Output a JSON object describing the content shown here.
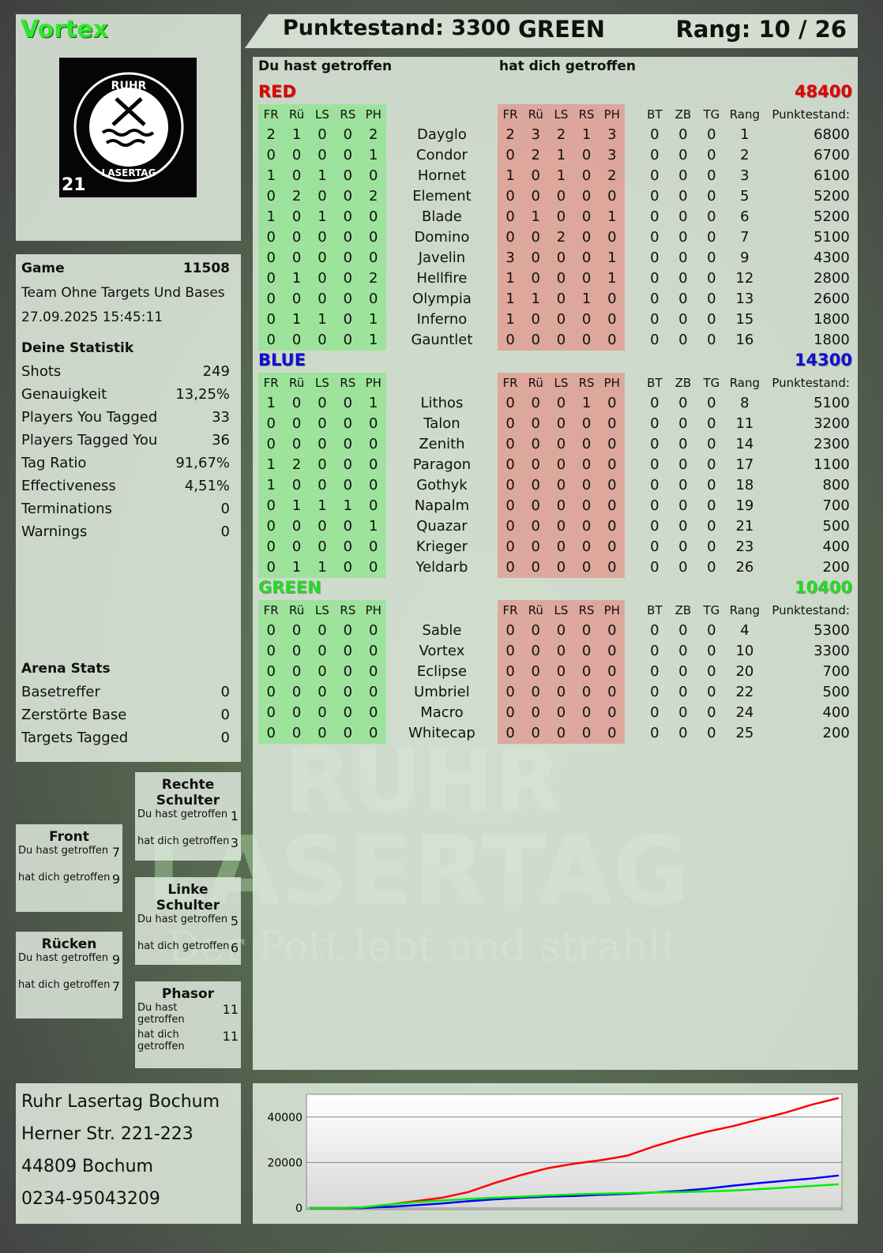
{
  "watermark": {
    "line1": "RUHR",
    "line2": "LASERTAG",
    "line3": "Der Pott lebt und strahlt"
  },
  "player": {
    "name": "Vortex",
    "logo_text": "RUHR LASERTAG",
    "logo_number": "21"
  },
  "header": {
    "score_label": "Punktestand: 3300",
    "team": "GREEN",
    "rank_label": "Rang: 10 / 26"
  },
  "game": {
    "label": "Game",
    "id": "11508",
    "mode": "Team Ohne Targets Und Bases",
    "datetime": "27.09.2025 15:45:11"
  },
  "stats": {
    "title": "Deine Statistik",
    "items": [
      {
        "label": "Shots",
        "value": "249"
      },
      {
        "label": "Genauigkeit",
        "value": "13,25%"
      },
      {
        "label": "Players You Tagged",
        "value": "33"
      },
      {
        "label": "Players Tagged You",
        "value": "36"
      },
      {
        "label": "Tag Ratio",
        "value": "91,67%"
      },
      {
        "label": "Effectiveness",
        "value": "4,51%"
      },
      {
        "label": "Terminations",
        "value": "0"
      },
      {
        "label": "Warnings",
        "value": "0"
      }
    ]
  },
  "arena": {
    "title": "Arena Stats",
    "items": [
      {
        "label": "Basetreffer",
        "value": "0"
      },
      {
        "label": "Zerstörte Base",
        "value": "0"
      },
      {
        "label": "Targets Tagged",
        "value": "0"
      }
    ]
  },
  "zones": [
    {
      "title": "Rechte Schulter",
      "hit_label": "Du hast getroffen",
      "hit": "1",
      "got_label": "hat dich getroffen",
      "got": "3"
    },
    {
      "title": "Front",
      "hit_label": "Du hast getroffen",
      "hit": "7",
      "got_label": "hat dich getroffen",
      "got": "9"
    },
    {
      "title": "Linke Schulter",
      "hit_label": "Du hast getroffen",
      "hit": "5",
      "got_label": "hat dich getroffen",
      "got": "6"
    },
    {
      "title": "Rücken",
      "hit_label": "Du hast getroffen",
      "hit": "9",
      "got_label": "hat dich getroffen",
      "got": "7"
    },
    {
      "title": "Phasor",
      "hit_label": "Du hast getroffen",
      "hit": "11",
      "got_label": "hat dich getroffen",
      "got": "11"
    }
  ],
  "address": {
    "name": "Ruhr Lasertag Bochum",
    "street": "Herner Str. 221-223",
    "city": "44809 Bochum",
    "phone": "0234-95043209"
  },
  "table": {
    "hit_title": "Du hast getroffen",
    "got_title": "hat dich getroffen",
    "columns": [
      "FR",
      "Rü",
      "LS",
      "RS",
      "PH",
      "FR",
      "Rü",
      "LS",
      "RS",
      "PH",
      "BT",
      "ZB",
      "TG",
      "Rang",
      "Punktestand:"
    ],
    "teams": [
      {
        "name": "RED",
        "total": "48400",
        "color": "#e00000",
        "players": [
          [
            "Dayglo",
            [
              2,
              1,
              0,
              0,
              2
            ],
            [
              2,
              3,
              2,
              1,
              3
            ],
            [
              0,
              0,
              0
            ],
            1,
            6800
          ],
          [
            "Condor",
            [
              0,
              0,
              0,
              0,
              1
            ],
            [
              0,
              2,
              1,
              0,
              3
            ],
            [
              0,
              0,
              0
            ],
            2,
            6700
          ],
          [
            "Hornet",
            [
              1,
              0,
              1,
              0,
              0
            ],
            [
              1,
              0,
              1,
              0,
              2
            ],
            [
              0,
              0,
              0
            ],
            3,
            6100
          ],
          [
            "Element",
            [
              0,
              2,
              0,
              0,
              2
            ],
            [
              0,
              0,
              0,
              0,
              0
            ],
            [
              0,
              0,
              0
            ],
            5,
            5200
          ],
          [
            "Blade",
            [
              1,
              0,
              1,
              0,
              0
            ],
            [
              0,
              1,
              0,
              0,
              1
            ],
            [
              0,
              0,
              0
            ],
            6,
            5200
          ],
          [
            "Domino",
            [
              0,
              0,
              0,
              0,
              0
            ],
            [
              0,
              0,
              2,
              0,
              0
            ],
            [
              0,
              0,
              0
            ],
            7,
            5100
          ],
          [
            "Javelin",
            [
              0,
              0,
              0,
              0,
              0
            ],
            [
              3,
              0,
              0,
              0,
              1
            ],
            [
              0,
              0,
              0
            ],
            9,
            4300
          ],
          [
            "Hellfire",
            [
              0,
              1,
              0,
              0,
              2
            ],
            [
              1,
              0,
              0,
              0,
              1
            ],
            [
              0,
              0,
              0
            ],
            12,
            2800
          ],
          [
            "Olympia",
            [
              0,
              0,
              0,
              0,
              0
            ],
            [
              1,
              1,
              0,
              1,
              0
            ],
            [
              0,
              0,
              0
            ],
            13,
            2600
          ],
          [
            "Inferno",
            [
              0,
              1,
              1,
              0,
              1
            ],
            [
              1,
              0,
              0,
              0,
              0
            ],
            [
              0,
              0,
              0
            ],
            15,
            1800
          ],
          [
            "Gauntlet",
            [
              0,
              0,
              0,
              0,
              1
            ],
            [
              0,
              0,
              0,
              0,
              0
            ],
            [
              0,
              0,
              0
            ],
            16,
            1800
          ]
        ]
      },
      {
        "name": "BLUE",
        "total": "14300",
        "color": "#1010d0",
        "players": [
          [
            "Lithos",
            [
              1,
              0,
              0,
              0,
              1
            ],
            [
              0,
              0,
              0,
              1,
              0
            ],
            [
              0,
              0,
              0
            ],
            8,
            5100
          ],
          [
            "Talon",
            [
              0,
              0,
              0,
              0,
              0
            ],
            [
              0,
              0,
              0,
              0,
              0
            ],
            [
              0,
              0,
              0
            ],
            11,
            3200
          ],
          [
            "Zenith",
            [
              0,
              0,
              0,
              0,
              0
            ],
            [
              0,
              0,
              0,
              0,
              0
            ],
            [
              0,
              0,
              0
            ],
            14,
            2300
          ],
          [
            "Paragon",
            [
              1,
              2,
              0,
              0,
              0
            ],
            [
              0,
              0,
              0,
              0,
              0
            ],
            [
              0,
              0,
              0
            ],
            17,
            1100
          ],
          [
            "Gothyk",
            [
              1,
              0,
              0,
              0,
              0
            ],
            [
              0,
              0,
              0,
              0,
              0
            ],
            [
              0,
              0,
              0
            ],
            18,
            800
          ],
          [
            "Napalm",
            [
              0,
              1,
              1,
              1,
              0
            ],
            [
              0,
              0,
              0,
              0,
              0
            ],
            [
              0,
              0,
              0
            ],
            19,
            700
          ],
          [
            "Quazar",
            [
              0,
              0,
              0,
              0,
              1
            ],
            [
              0,
              0,
              0,
              0,
              0
            ],
            [
              0,
              0,
              0
            ],
            21,
            500
          ],
          [
            "Krieger",
            [
              0,
              0,
              0,
              0,
              0
            ],
            [
              0,
              0,
              0,
              0,
              0
            ],
            [
              0,
              0,
              0
            ],
            23,
            400
          ],
          [
            "Yeldarb",
            [
              0,
              1,
              1,
              0,
              0
            ],
            [
              0,
              0,
              0,
              0,
              0
            ],
            [
              0,
              0,
              0
            ],
            26,
            200
          ]
        ]
      },
      {
        "name": "GREEN",
        "total": "10400",
        "color": "#22dd22",
        "players": [
          [
            "Sable",
            [
              0,
              0,
              0,
              0,
              0
            ],
            [
              0,
              0,
              0,
              0,
              0
            ],
            [
              0,
              0,
              0
            ],
            4,
            5300
          ],
          [
            "Vortex",
            [
              0,
              0,
              0,
              0,
              0
            ],
            [
              0,
              0,
              0,
              0,
              0
            ],
            [
              0,
              0,
              0
            ],
            10,
            3300
          ],
          [
            "Eclipse",
            [
              0,
              0,
              0,
              0,
              0
            ],
            [
              0,
              0,
              0,
              0,
              0
            ],
            [
              0,
              0,
              0
            ],
            20,
            700
          ],
          [
            "Umbriel",
            [
              0,
              0,
              0,
              0,
              0
            ],
            [
              0,
              0,
              0,
              0,
              0
            ],
            [
              0,
              0,
              0
            ],
            22,
            500
          ],
          [
            "Macro",
            [
              0,
              0,
              0,
              0,
              0
            ],
            [
              0,
              0,
              0,
              0,
              0
            ],
            [
              0,
              0,
              0
            ],
            24,
            400
          ],
          [
            "Whitecap",
            [
              0,
              0,
              0,
              0,
              0
            ],
            [
              0,
              0,
              0,
              0,
              0
            ],
            [
              0,
              0,
              0
            ],
            25,
            200
          ]
        ]
      }
    ]
  },
  "chart_data": {
    "type": "line",
    "ylim": [
      0,
      50000
    ],
    "yticks": [
      "0",
      "20000",
      "40000"
    ],
    "grid": true,
    "series": [
      {
        "color": "#ff0000",
        "values": [
          0,
          0,
          200,
          1500,
          3000,
          4500,
          7000,
          11000,
          14500,
          17500,
          19500,
          21000,
          23000,
          27000,
          30500,
          33500,
          36000,
          39000,
          42000,
          45500,
          48400
        ]
      },
      {
        "color": "#0000ff",
        "values": [
          0,
          0,
          0,
          500,
          1200,
          2000,
          3000,
          3800,
          4500,
          5000,
          5300,
          5800,
          6200,
          6800,
          7500,
          8500,
          9800,
          11000,
          12000,
          13000,
          14300
        ]
      },
      {
        "color": "#00ee00",
        "values": [
          0,
          0,
          300,
          1500,
          2500,
          3300,
          4000,
          4500,
          5000,
          5500,
          6000,
          6300,
          6500,
          6800,
          7000,
          7300,
          7700,
          8300,
          9000,
          9700,
          10400
        ]
      }
    ]
  }
}
